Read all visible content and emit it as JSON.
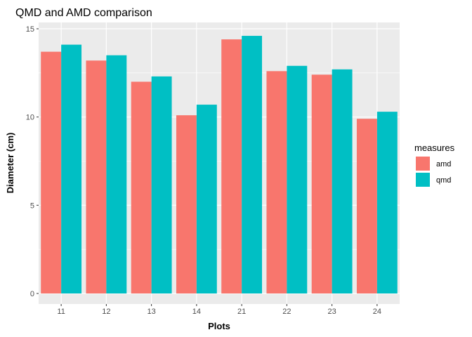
{
  "chart_data": {
    "type": "bar",
    "title": "QMD and AMD comparison",
    "xlabel": "Plots",
    "ylabel": "Diameter (cm)",
    "categories": [
      "11",
      "12",
      "13",
      "14",
      "21",
      "22",
      "23",
      "24"
    ],
    "series": [
      {
        "name": "amd",
        "color": "#F8766D",
        "values": [
          13.7,
          13.2,
          12.0,
          10.1,
          14.4,
          12.6,
          12.4,
          9.9
        ]
      },
      {
        "name": "qmd",
        "color": "#00BFC4",
        "values": [
          14.1,
          13.5,
          12.3,
          10.7,
          14.6,
          12.9,
          12.7,
          10.3
        ]
      }
    ],
    "ylim": [
      0,
      15
    ],
    "yticks": [
      0,
      5,
      10,
      15
    ],
    "grid": true,
    "legend": {
      "title": "measures",
      "position": "right"
    },
    "panel_background": "#EBEBEB",
    "grid_color": "#FFFFFF"
  }
}
